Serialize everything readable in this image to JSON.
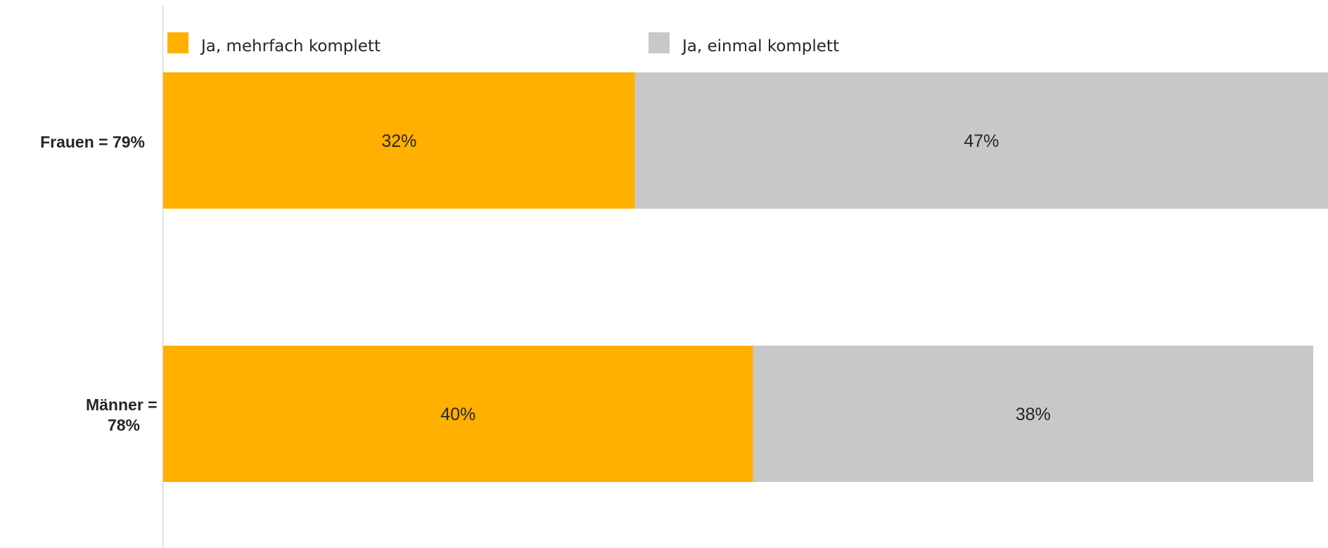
{
  "chart_data": {
    "type": "bar",
    "orientation": "horizontal",
    "stacked": true,
    "categories": [
      "Frauen = 79%",
      "Männer = 78%"
    ],
    "series": [
      {
        "name": "Ja, mehrfach komplett",
        "values": [
          32,
          40
        ],
        "labels": [
          "32%",
          "40%"
        ],
        "color": "#FFB000"
      },
      {
        "name": "Ja, einmal komplett",
        "values": [
          47,
          38
        ],
        "labels": [
          "47%",
          "38%"
        ],
        "color": "#C8C8C8"
      }
    ],
    "xlim": [
      0,
      79
    ],
    "grid": false,
    "legend_position": "top-left"
  }
}
